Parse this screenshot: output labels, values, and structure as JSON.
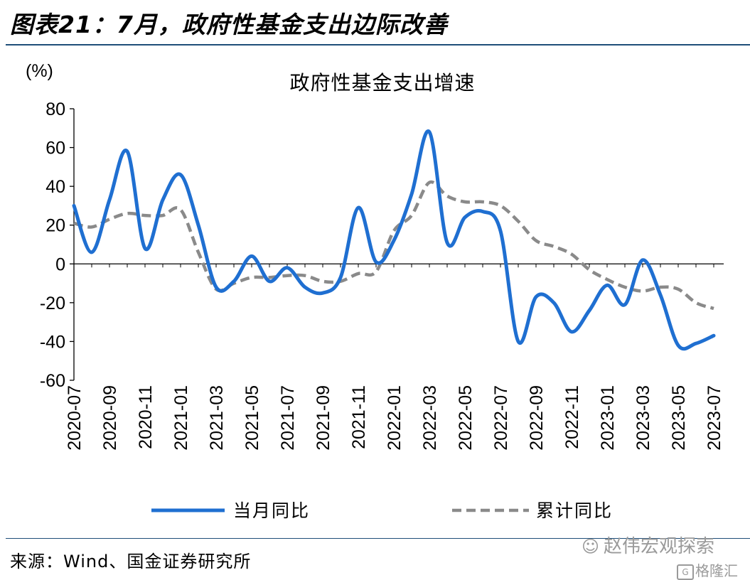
{
  "figure_title": "图表21：7月，政府性基金支出边际改善",
  "source_note": "来源：Wind、国金证券研究所",
  "watermark": {
    "text": "赵伟宏观探索",
    "icon": "wechat-icon",
    "brand": "格隆汇",
    "brand_icon": "gelonghui-logo-icon"
  },
  "chart_data": {
    "type": "line",
    "title": "政府性基金支出增速",
    "ylabel": "(%)",
    "xlabel": "",
    "ylim": [
      -60,
      80
    ],
    "yticks": [
      -60,
      -40,
      -20,
      0,
      20,
      40,
      60,
      80
    ],
    "x": [
      "2020-07",
      "2020-08",
      "2020-09",
      "2020-10",
      "2020-11",
      "2020-12",
      "2021-01",
      "2021-02",
      "2021-03",
      "2021-04",
      "2021-05",
      "2021-06",
      "2021-07",
      "2021-08",
      "2021-09",
      "2021-10",
      "2021-11",
      "2021-12",
      "2022-01",
      "2022-02",
      "2022-03",
      "2022-04",
      "2022-05",
      "2022-06",
      "2022-07",
      "2022-08",
      "2022-09",
      "2022-10",
      "2022-11",
      "2022-12",
      "2023-01",
      "2023-02",
      "2023-03",
      "2023-04",
      "2023-05",
      "2023-06",
      "2023-07"
    ],
    "xtick_labels": [
      "2020-07",
      "2020-09",
      "2020-11",
      "2021-01",
      "2021-03",
      "2021-05",
      "2021-07",
      "2021-09",
      "2021-11",
      "2022-01",
      "2022-03",
      "2022-05",
      "2022-07",
      "2022-09",
      "2022-11",
      "2023-01",
      "2023-03",
      "2023-05",
      "2023-07"
    ],
    "series": [
      {
        "name": "当月同比",
        "color": "#1f6fd1",
        "style": "solid",
        "values": [
          30,
          6,
          33,
          58,
          8,
          33,
          46,
          20,
          -12,
          -9,
          4,
          -9,
          -2,
          -12,
          -15,
          -7,
          29,
          1,
          12,
          36,
          68,
          11,
          24,
          27,
          17,
          -40,
          -17,
          -20,
          -35,
          -24,
          -11,
          -21,
          2,
          -16,
          -42,
          -41,
          -37
        ]
      },
      {
        "name": "累计同比",
        "color": "#8a8a8a",
        "style": "dashed",
        "values": [
          21,
          19,
          23,
          26,
          25,
          25,
          28,
          6,
          -13,
          -10,
          -7,
          -7,
          -6,
          -6,
          -9,
          -9,
          -5,
          -4,
          17,
          25,
          42,
          35,
          32,
          32,
          30,
          22,
          12,
          9,
          5,
          -3,
          -8,
          -12,
          -14,
          -12,
          -13,
          -20,
          -23
        ]
      }
    ],
    "legend_position": "bottom",
    "grid": false
  }
}
